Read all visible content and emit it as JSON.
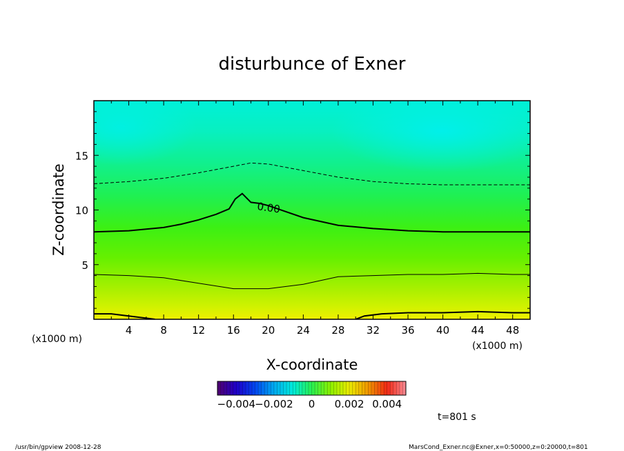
{
  "chart_data": {
    "type": "heatmap",
    "title": "disturbunce of Exner",
    "xlabel": "X-coordinate",
    "ylabel": "Z-coordinate",
    "x_unit": "(x1000 m)",
    "y_unit": "(x1000 m)",
    "xlim": [
      0,
      50
    ],
    "ylim": [
      0,
      20
    ],
    "x_ticks": [
      4,
      8,
      12,
      16,
      20,
      24,
      28,
      32,
      36,
      40,
      44,
      48
    ],
    "y_ticks": [
      5,
      10,
      15
    ],
    "colorbar": {
      "range": [
        -0.005,
        0.005
      ],
      "tick_values": [
        -0.004,
        -0.002,
        0,
        0.002,
        0.004
      ],
      "tick_labels": [
        "-0.004",
        "-0.002",
        "0",
        "0.002",
        "0.004"
      ]
    },
    "contours": [
      {
        "style": "dashed",
        "x": [
          0,
          4,
          8,
          12,
          16,
          18,
          20,
          24,
          28,
          32,
          36,
          40,
          44,
          48,
          50
        ],
        "y": [
          12.4,
          12.6,
          12.9,
          13.4,
          14.0,
          14.3,
          14.2,
          13.6,
          13.0,
          12.6,
          12.4,
          12.3,
          12.3,
          12.3,
          12.3
        ]
      },
      {
        "style": "solid-thick",
        "label": "0.00",
        "x": [
          0,
          4,
          8,
          10,
          12,
          14,
          15.5,
          16.2,
          17.0,
          17.5,
          18.0,
          19,
          20,
          24,
          28,
          32,
          36,
          40,
          44,
          48,
          50
        ],
        "y": [
          8.0,
          8.1,
          8.4,
          8.7,
          9.1,
          9.6,
          10.1,
          11.0,
          11.5,
          11.1,
          10.7,
          10.6,
          10.4,
          9.3,
          8.6,
          8.3,
          8.1,
          8.0,
          8.0,
          8.0,
          8.0
        ]
      },
      {
        "style": "solid",
        "x": [
          0,
          4,
          8,
          12,
          16,
          20,
          24,
          28,
          32,
          36,
          40,
          44,
          48,
          50
        ],
        "y": [
          4.1,
          4.0,
          3.8,
          3.3,
          2.8,
          2.8,
          3.2,
          3.9,
          4.0,
          4.1,
          4.1,
          4.2,
          4.1,
          4.1
        ]
      },
      {
        "style": "solid-thick",
        "x": [
          0,
          2,
          4,
          6,
          7
        ],
        "y": [
          0.5,
          0.5,
          0.3,
          0.1,
          0.0
        ]
      },
      {
        "style": "solid-thick",
        "x": [
          30,
          31,
          33,
          36,
          40,
          44,
          48,
          50
        ],
        "y": [
          0.0,
          0.3,
          0.5,
          0.6,
          0.6,
          0.7,
          0.6,
          0.6
        ]
      }
    ]
  },
  "time_label": "t=801 s",
  "footer_left": "/usr/bin/gpview   2008-12-28",
  "footer_right": "MarsCond_Exner.nc@Exner,x=0:50000,z=0:20000,t=801"
}
